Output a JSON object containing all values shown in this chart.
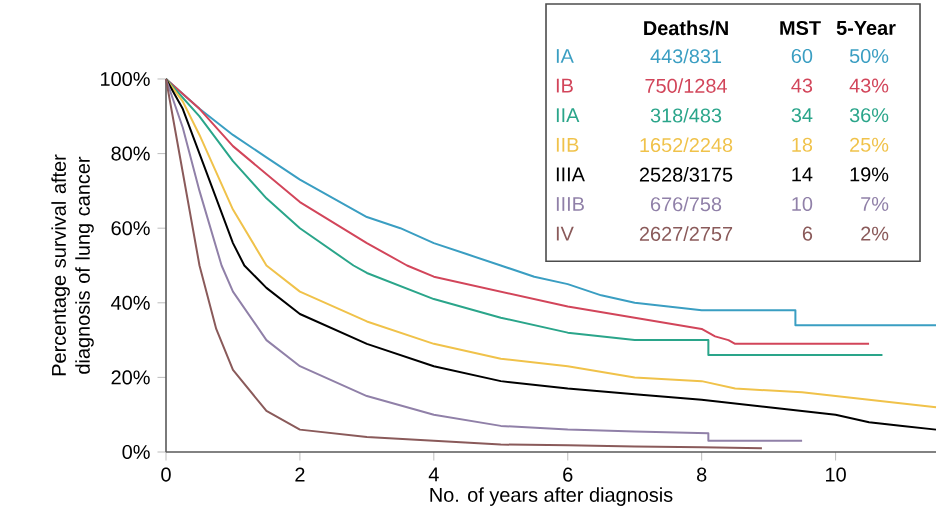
{
  "chart_data": {
    "type": "line",
    "xlabel": "No. of years after diagnosis",
    "ylabel": "Percentage survival after diagnosis of lung cancer",
    "xlim": [
      0,
      11.5
    ],
    "ylim": [
      0,
      100
    ],
    "xticks": [
      0,
      2,
      4,
      6,
      8,
      10
    ],
    "yticks": [
      {
        "value": 0,
        "label": "0%"
      },
      {
        "value": 20,
        "label": "20%"
      },
      {
        "value": 40,
        "label": "40%"
      },
      {
        "value": 60,
        "label": "60%"
      },
      {
        "value": 80,
        "label": "80%"
      },
      {
        "value": 100,
        "label": "100%"
      }
    ],
    "grid": false,
    "legend": "top right",
    "marker": "none",
    "line_style": "solid",
    "series": [
      {
        "name": "IA",
        "color": "#3a9ec2",
        "x": [
          0,
          0.5,
          1,
          1.5,
          2,
          2.5,
          3,
          3.5,
          4,
          4.5,
          5,
          5.5,
          6,
          6.5,
          7,
          7.5,
          8,
          9.4,
          9.4,
          11.5
        ],
        "values": [
          100,
          92,
          85,
          79,
          73,
          68,
          63,
          60,
          56,
          53,
          50,
          47,
          45,
          42,
          40,
          39,
          38,
          38,
          34,
          34
        ]
      },
      {
        "name": "IB",
        "color": "#d2455a",
        "x": [
          0,
          0.5,
          1,
          2,
          3,
          3.6,
          4,
          5,
          6,
          7,
          8,
          8.2,
          8.4,
          8.5,
          10.5
        ],
        "values": [
          100,
          92,
          82,
          67,
          56,
          50,
          47,
          43,
          39,
          36,
          33,
          31,
          30,
          29,
          29
        ]
      },
      {
        "name": "IIA",
        "color": "#2aa58a",
        "x": [
          0,
          0.5,
          1,
          1.5,
          2,
          2.8,
          3,
          4,
          5,
          6,
          7,
          8.1,
          8.1,
          10.7
        ],
        "values": [
          100,
          90,
          78,
          68,
          60,
          50,
          48,
          41,
          36,
          32,
          30,
          30,
          26,
          26
        ]
      },
      {
        "name": "IIB",
        "color": "#f0c24a",
        "x": [
          0,
          0.25,
          0.5,
          1,
          1.5,
          2,
          3,
          4,
          5,
          6,
          7,
          8,
          8.5,
          9.5,
          10.5,
          11,
          11.5
        ],
        "values": [
          100,
          94,
          85,
          65,
          50,
          43,
          35,
          29,
          25,
          23,
          20,
          19,
          17,
          16,
          14,
          13,
          12
        ]
      },
      {
        "name": "IIIA",
        "color": "#000000",
        "x": [
          0,
          0.25,
          0.5,
          1,
          1.17,
          1.5,
          2,
          3,
          4,
          5,
          6,
          7,
          8,
          9,
          10,
          10.5,
          11,
          11.5
        ],
        "values": [
          100,
          92,
          80,
          56,
          50,
          44,
          37,
          29,
          23,
          19,
          17,
          15.5,
          14,
          12,
          10,
          8,
          7,
          6
        ]
      },
      {
        "name": "IIIB",
        "color": "#9080a8",
        "x": [
          0,
          0.25,
          0.5,
          0.83,
          1,
          1.5,
          2,
          3,
          4,
          5,
          6,
          7,
          8.1,
          8.1,
          9.5
        ],
        "values": [
          100,
          87,
          70,
          50,
          43,
          30,
          23,
          15,
          10,
          7,
          6,
          5.5,
          5,
          3,
          3
        ]
      },
      {
        "name": "IV",
        "color": "#8a5a5a",
        "x": [
          0,
          0.25,
          0.5,
          0.75,
          1,
          1.5,
          2,
          3,
          4,
          5,
          6,
          7,
          8,
          8.9
        ],
        "values": [
          100,
          75,
          50,
          33,
          22,
          11,
          6,
          4,
          3,
          2,
          1.8,
          1.5,
          1.3,
          1
        ]
      }
    ],
    "annotations": [
      "Deaths/N",
      "MST",
      "5-Year",
      "443/831",
      "60",
      "50%",
      "750/1284",
      "43",
      "43%",
      "318/483",
      "34",
      "36%",
      "1652/2248",
      "18",
      "25%",
      "2528/3175",
      "14",
      "19%",
      "676/758",
      "10",
      "7%",
      "2627/2757",
      "6",
      "2%"
    ]
  }
}
